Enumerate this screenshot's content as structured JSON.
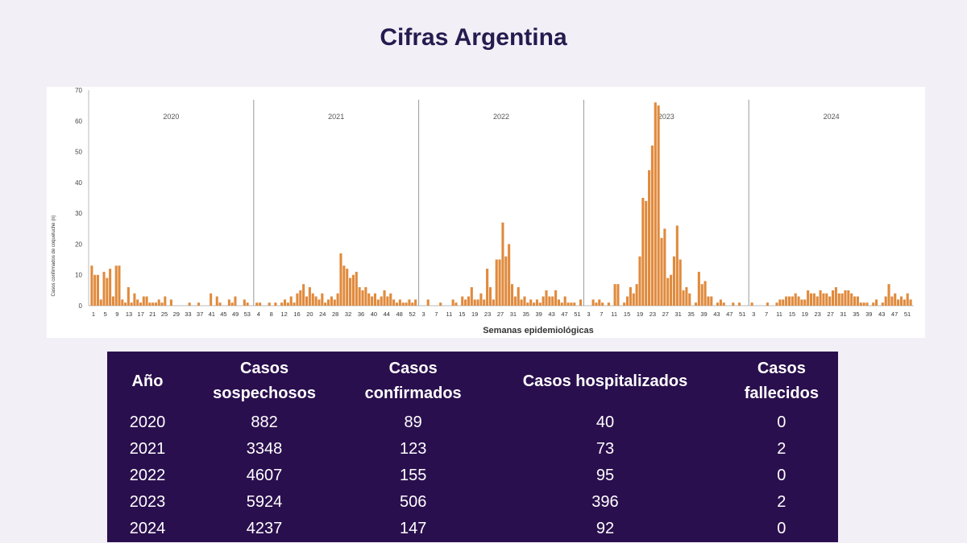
{
  "slide": {
    "title": "Cifras Argentina"
  },
  "chart_data": {
    "type": "bar",
    "title": "",
    "xlabel": "Semanas epidemiológicas",
    "ylabel": "Casos confirmados de coqueluche (n)",
    "ylim": [
      0,
      70
    ],
    "yticks": [
      0,
      10,
      20,
      30,
      40,
      50,
      60,
      70
    ],
    "grid": false,
    "bar_color": "#e08a3c",
    "panels": [
      {
        "year": "2020",
        "tick_labels": [
          "1",
          "5",
          "9",
          "13",
          "17",
          "21",
          "25",
          "29",
          "33",
          "37",
          "41",
          "45",
          "49",
          "53"
        ],
        "values": [
          13,
          10,
          10,
          2,
          11,
          9,
          12,
          3,
          13,
          13,
          2,
          1,
          6,
          1,
          4,
          2,
          1,
          3,
          3,
          1,
          1,
          1,
          2,
          1,
          3,
          0,
          2,
          0,
          0,
          0,
          0,
          0,
          1,
          0,
          0,
          1,
          0,
          0,
          0,
          4,
          0,
          3,
          1,
          0,
          0,
          2,
          1,
          3,
          0,
          0,
          2,
          1,
          0
        ]
      },
      {
        "year": "2021",
        "tick_labels": [
          "4",
          "8",
          "12",
          "16",
          "20",
          "24",
          "28",
          "32",
          "36",
          "40",
          "44",
          "48",
          "52"
        ],
        "values": [
          1,
          1,
          0,
          0,
          1,
          0,
          1,
          0,
          1,
          2,
          1,
          3,
          1,
          4,
          5,
          7,
          3,
          6,
          4,
          3,
          2,
          4,
          1,
          2,
          3,
          2,
          4,
          17,
          13,
          12,
          9,
          10,
          11,
          6,
          5,
          6,
          4,
          3,
          4,
          2,
          3,
          5,
          3,
          4,
          2,
          1,
          2,
          1,
          1,
          2,
          1,
          2
        ]
      },
      {
        "year": "2022",
        "tick_labels": [
          "3",
          "7",
          "11",
          "15",
          "19",
          "23",
          "27",
          "31",
          "35",
          "39",
          "43",
          "47",
          "51"
        ],
        "values": [
          0,
          0,
          2,
          0,
          0,
          0,
          1,
          0,
          0,
          0,
          2,
          1,
          0,
          3,
          2,
          3,
          6,
          2,
          2,
          4,
          2,
          12,
          6,
          2,
          15,
          15,
          27,
          16,
          20,
          7,
          3,
          6,
          2,
          3,
          1,
          2,
          1,
          2,
          1,
          3,
          5,
          3,
          3,
          5,
          2,
          1,
          3,
          1,
          1,
          1,
          0,
          2
        ]
      },
      {
        "year": "2023",
        "tick_labels": [
          "3",
          "7",
          "11",
          "15",
          "19",
          "23",
          "27",
          "31",
          "35",
          "39",
          "43",
          "47",
          "51"
        ],
        "values": [
          0,
          0,
          2,
          1,
          2,
          1,
          0,
          1,
          0,
          7,
          7,
          0,
          1,
          3,
          6,
          4,
          7,
          16,
          35,
          34,
          44,
          52,
          66,
          65,
          22,
          25,
          9,
          10,
          16,
          26,
          15,
          5,
          6,
          4,
          0,
          1,
          11,
          7,
          8,
          3,
          3,
          0,
          1,
          2,
          1,
          0,
          0,
          1,
          0,
          1,
          0,
          0
        ]
      },
      {
        "year": "2024",
        "tick_labels": [
          "3",
          "7",
          "11",
          "15",
          "19",
          "23",
          "27",
          "31",
          "35",
          "39",
          "43",
          "47",
          "51"
        ],
        "values": [
          1,
          0,
          0,
          0,
          0,
          1,
          0,
          0,
          1,
          2,
          2,
          3,
          3,
          3,
          4,
          3,
          2,
          2,
          5,
          4,
          4,
          3,
          5,
          4,
          4,
          3,
          5,
          6,
          4,
          4,
          5,
          5,
          4,
          3,
          3,
          1,
          1,
          1,
          0,
          1,
          2,
          0,
          1,
          3,
          7,
          3,
          4,
          2,
          3,
          2,
          4,
          2
        ]
      }
    ]
  }
}
